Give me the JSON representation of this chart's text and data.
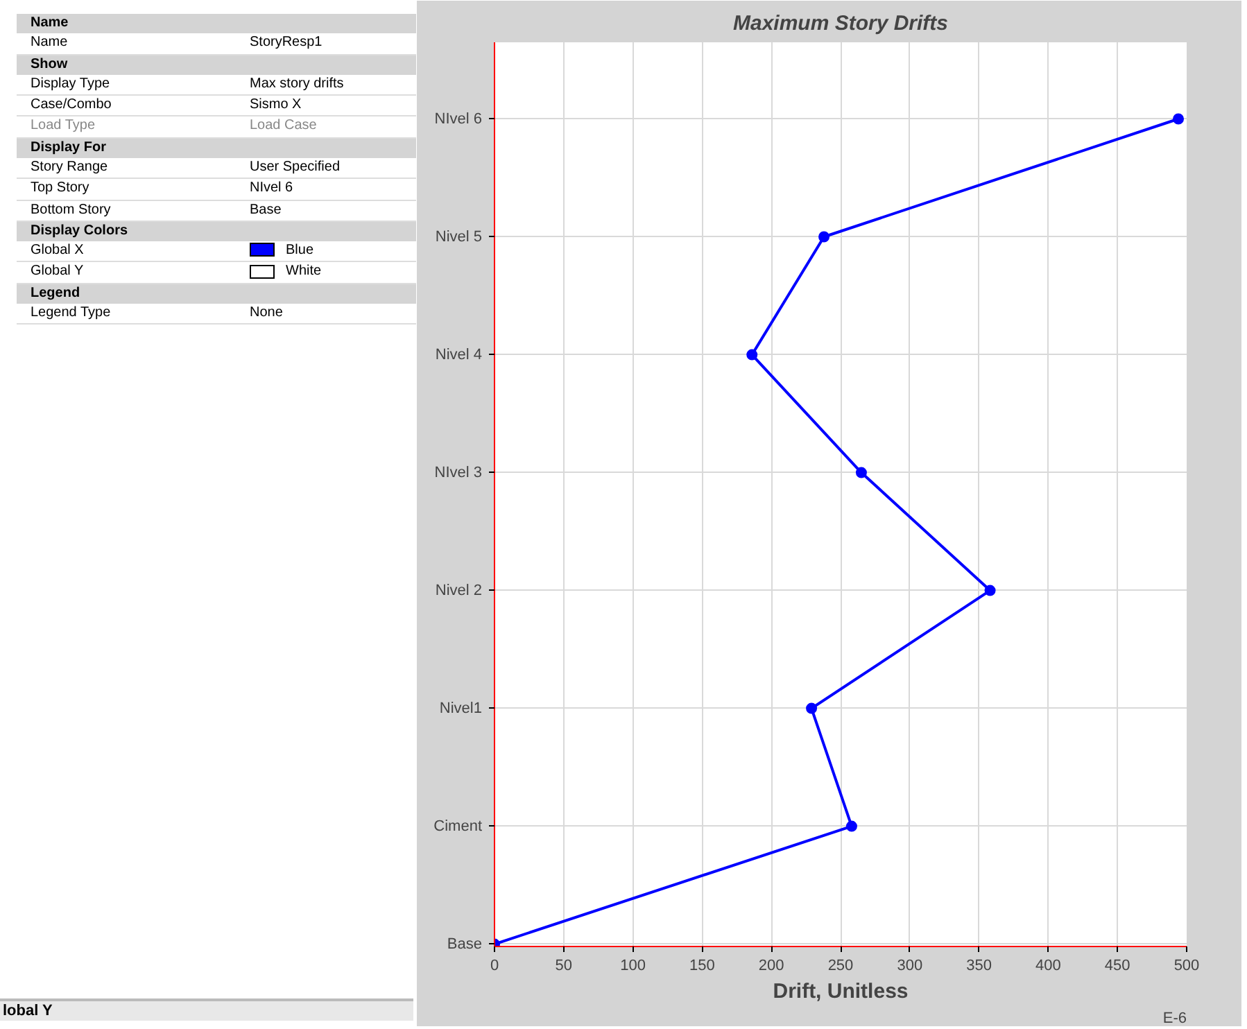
{
  "chart_data": {
    "type": "line",
    "title": "Maximum Story Drifts",
    "xlabel": "Drift, Unitless",
    "xlim": [
      0,
      500
    ],
    "xticks": [
      0,
      50,
      100,
      150,
      200,
      250,
      300,
      350,
      400,
      450,
      500
    ],
    "orientation": "horizontal",
    "categories": [
      "NIvel 6",
      "Nivel 5",
      "Nivel 4",
      "NIvel 3",
      "Nivel 2",
      "Nivel1",
      "Ciment",
      "Base"
    ],
    "series": [
      {
        "color": "#0000ff",
        "values": [
          494,
          238,
          186,
          265,
          358,
          229,
          258,
          0
        ]
      }
    ],
    "marker": "circle",
    "line_style": "solid",
    "grid": true,
    "annotations": [
      "Name",
      "Name",
      "StoryResp1",
      "Show",
      "Display Type",
      "Max story drifts",
      "Case/Combo",
      "Sismo X",
      "Load Type",
      "Load Case",
      "Display For",
      "Story Range",
      "User Specified",
      "Top Story",
      "NIvel 6",
      "Bottom Story",
      "Base",
      "Display Colors",
      "Global X",
      "Blue",
      "Global Y",
      "White",
      "Legend",
      "Legend Type",
      "None",
      "lobal Y",
      "E-6"
    ]
  }
}
